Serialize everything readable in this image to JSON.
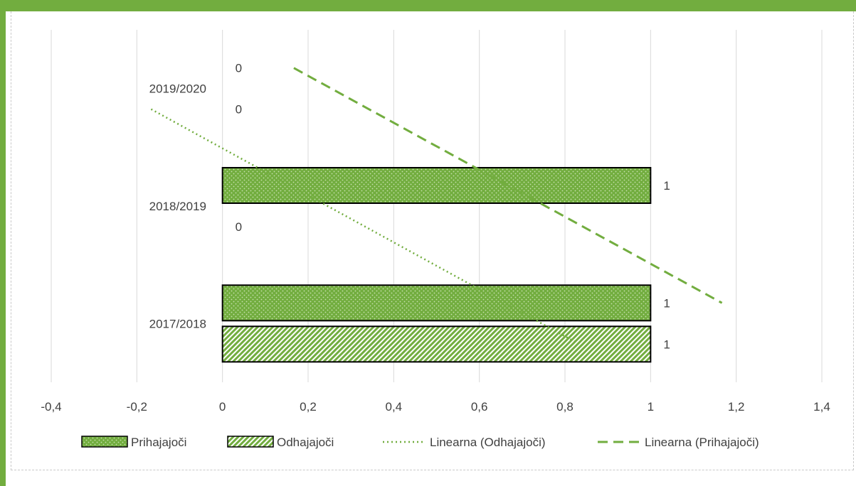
{
  "chart_data": {
    "type": "bar",
    "orientation": "horizontal",
    "categories": [
      "2017/2018",
      "2018/2019",
      "2019/2020"
    ],
    "series": [
      {
        "name": "Prihajajoči",
        "values": [
          1,
          1,
          0
        ],
        "color": "#72ad3f",
        "pattern": "dots"
      },
      {
        "name": "Odhajajoči",
        "values": [
          1,
          0,
          0
        ],
        "color": "#72ad3f",
        "pattern": "diagonal"
      }
    ],
    "trendlines": [
      {
        "name": "Linearna (Odhajajoči)",
        "series": "Odhajajoči",
        "style": "dotted",
        "color": "#72ad3f"
      },
      {
        "name": "Linearna (Prihajajoči)",
        "series": "Prihajajoči",
        "style": "dashed",
        "color": "#72ad3f"
      }
    ],
    "xlim": [
      -0.4,
      1.4
    ],
    "xticks": [
      -0.4,
      -0.2,
      0,
      0.2,
      0.4,
      0.6,
      0.8,
      1,
      1.2,
      1.4
    ],
    "xtick_labels": [
      "-0,4",
      "-0,2",
      "0",
      "0,2",
      "0,4",
      "0,6",
      "0,8",
      "1",
      "1,2",
      "1,4"
    ],
    "grid": true,
    "legend": "bottom",
    "data_labels": true
  }
}
